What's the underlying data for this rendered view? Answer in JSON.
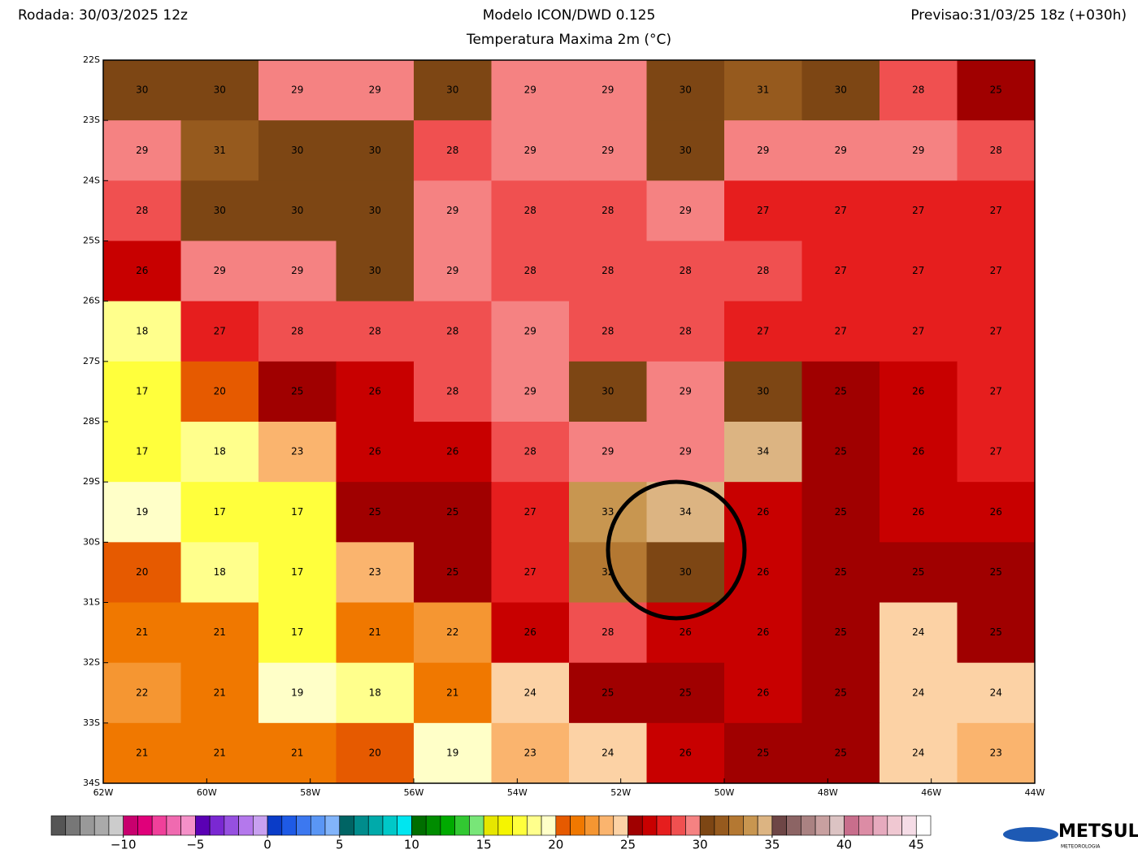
{
  "header": {
    "run": "Rodada: 30/03/2025 12z",
    "model": "Modelo ICON/DWD 0.125",
    "field": "Temperatura Maxima 2m (°C)",
    "forecast": "Previsao:31/03/25 18z (+030h)"
  },
  "map": {
    "xlim": [
      -62,
      -44
    ],
    "ylim": [
      -22,
      -34
    ],
    "xticks": [
      {
        "value": -62,
        "label": "62W"
      },
      {
        "value": -60,
        "label": "60W"
      },
      {
        "value": -58,
        "label": "58W"
      },
      {
        "value": -56,
        "label": "56W"
      },
      {
        "value": -54,
        "label": "54W"
      },
      {
        "value": -52,
        "label": "52W"
      },
      {
        "value": -50,
        "label": "50W"
      },
      {
        "value": -48,
        "label": "48W"
      },
      {
        "value": -46,
        "label": "46W"
      },
      {
        "value": -44,
        "label": "44W"
      }
    ],
    "yticks": [
      {
        "value": -22,
        "label": "22S"
      },
      {
        "value": -23,
        "label": "23S"
      },
      {
        "value": -24,
        "label": "24S"
      },
      {
        "value": -25,
        "label": "25S"
      },
      {
        "value": -26,
        "label": "26S"
      },
      {
        "value": -27,
        "label": "27S"
      },
      {
        "value": -28,
        "label": "28S"
      },
      {
        "value": -29,
        "label": "29S"
      },
      {
        "value": -30,
        "label": "30S"
      },
      {
        "value": -31,
        "label": "31S"
      },
      {
        "value": -32,
        "label": "32S"
      },
      {
        "value": -33,
        "label": "33S"
      },
      {
        "value": -34,
        "label": "34S"
      }
    ],
    "lons": [
      -61.25,
      -59.75,
      -58.25,
      -56.75,
      -55.25,
      -53.75,
      -52.25,
      -50.75,
      -49.25,
      -47.75,
      -46.25,
      -44.75
    ],
    "lats": [
      -22.5,
      -23.5,
      -24.5,
      -25.5,
      -26.5,
      -27.5,
      -28.5,
      -29.5,
      -30.5,
      -31.5,
      -32.5,
      -33.5
    ],
    "values": [
      [
        30,
        30,
        29,
        29,
        30,
        29,
        29,
        30,
        31,
        30,
        28,
        25
      ],
      [
        29,
        31,
        30,
        30,
        28,
        29,
        29,
        30,
        29,
        29,
        29,
        28
      ],
      [
        28,
        30,
        30,
        30,
        29,
        28,
        28,
        29,
        27,
        27,
        27,
        27
      ],
      [
        26,
        29,
        29,
        30,
        29,
        28,
        28,
        28,
        28,
        27,
        27,
        27
      ],
      [
        18,
        27,
        28,
        28,
        28,
        29,
        28,
        28,
        27,
        27,
        27,
        27
      ],
      [
        17,
        20,
        25,
        26,
        28,
        29,
        30,
        29,
        30,
        25,
        26,
        27
      ],
      [
        17,
        18,
        23,
        26,
        26,
        28,
        29,
        29,
        34,
        25,
        26,
        27
      ],
      [
        19,
        17,
        17,
        25,
        25,
        27,
        33,
        34,
        26,
        25,
        26,
        26
      ],
      [
        20,
        18,
        17,
        23,
        25,
        27,
        32,
        30,
        26,
        25,
        25,
        25
      ],
      [
        21,
        21,
        17,
        21,
        22,
        26,
        28,
        26,
        26,
        25,
        24,
        25
      ],
      [
        22,
        21,
        19,
        18,
        21,
        24,
        25,
        25,
        26,
        25,
        24,
        24
      ],
      [
        21,
        21,
        21,
        20,
        19,
        23,
        24,
        26,
        25,
        25,
        24,
        23
      ]
    ]
  },
  "colorbar": {
    "min": -15,
    "max": 46,
    "colors": [
      "#555555",
      "#777777",
      "#999999",
      "#aaaaaa",
      "#cccccc",
      "#c8006e",
      "#e0007a",
      "#f0409a",
      "#f06ab0",
      "#f590c8",
      "#5a00b4",
      "#7a28d2",
      "#9650e0",
      "#b478ec",
      "#c8a0f0",
      "#0a3cc8",
      "#1e5ae6",
      "#3c78f0",
      "#5a96f5",
      "#82b4fa",
      "#006464",
      "#008c8c",
      "#00aaaa",
      "#00c8c8",
      "#00e6f0",
      "#006e00",
      "#008c00",
      "#00aa00",
      "#32c832",
      "#78e678",
      "#e6e600",
      "#f5f500",
      "#ffff3c",
      "#ffff8c",
      "#ffffc8",
      "#e65a00",
      "#f07800",
      "#f59632",
      "#fab46e",
      "#fcd2a5",
      "#a00000",
      "#c80000",
      "#e61e1e",
      "#f05050",
      "#f58282",
      "#7d4614",
      "#965a1e",
      "#b47832",
      "#c89650",
      "#dcb482",
      "#6e4646",
      "#8c6464",
      "#aa8282",
      "#c8a0a0",
      "#dcc3c3",
      "#c86e8c",
      "#dc8ca5",
      "#e6aabe",
      "#f0c8d2",
      "#f5dce6",
      "#ffffff"
    ],
    "ticks": [
      {
        "value": -10,
        "label": "−10"
      },
      {
        "value": -5,
        "label": "−5"
      },
      0,
      5,
      10,
      15,
      20,
      25,
      30,
      35,
      40,
      45
    ]
  },
  "logo": {
    "name": "METSUL",
    "tagline": "METEOROLOGIA"
  }
}
